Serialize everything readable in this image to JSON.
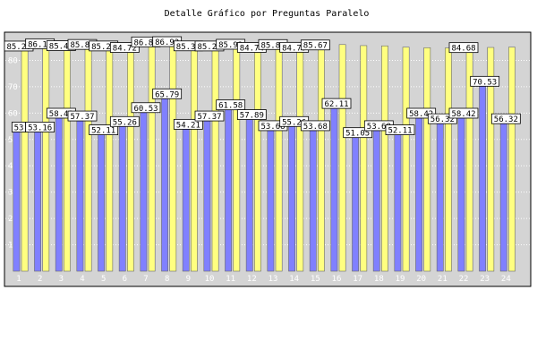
{
  "chart_data": {
    "type": "bar",
    "title": "Detalle Gráfico por Preguntas Paralelo",
    "xlabel": "",
    "ylabel": "",
    "ylim": [
      0,
      90
    ],
    "yticks": [
      10,
      20,
      30,
      40,
      50,
      60,
      70,
      80
    ],
    "grid": true,
    "categories": [
      "1",
      "2",
      "3",
      "4",
      "5",
      "6",
      "7",
      "8",
      "9",
      "10",
      "11",
      "12",
      "13",
      "14",
      "15",
      "16",
      "17",
      "18",
      "19",
      "20",
      "21",
      "22",
      "23",
      "24"
    ],
    "series": [
      {
        "color": "#8080ff",
        "values": [
          53.16,
          53.16,
          58.42,
          57.37,
          52.11,
          55.26,
          60.53,
          65.79,
          54.21,
          57.37,
          61.58,
          57.89,
          53.68,
          55.26,
          53.68,
          62.11,
          51.05,
          53.68,
          52.11,
          58.42,
          56.32,
          58.42,
          70.53,
          56.32
        ]
      },
      {
        "color": "#ffff80",
        "values": [
          85.26,
          86.14,
          85.4,
          85.87,
          85.29,
          84.72,
          86.84,
          86.93,
          85.33,
          85.28,
          85.93,
          84.74,
          85.83,
          84.79,
          85.67,
          86.0,
          85.6,
          85.5,
          85.0,
          84.8,
          84.7,
          84.68,
          84.9,
          85.0
        ]
      }
    ],
    "data_labels": {
      "series0": [
        "53",
        "53.16",
        "58.42",
        "57.37",
        "52.11",
        "55.26",
        "60.53",
        "65.79",
        "54.21",
        "57.37",
        "61.58",
        "57.89",
        "53.68",
        "55.26",
        "53.68",
        "62.11",
        "51.05",
        "53.68",
        "52.11",
        "58.42",
        "56.32",
        "58.42",
        "70.53",
        "56.32"
      ],
      "series1": [
        "85.26",
        "86.14",
        "85.40",
        "85.87",
        "85.29",
        "84.72",
        "86.84",
        "86.93",
        "85.33",
        "85.28",
        "85.93",
        "84.74",
        "85.83",
        "84.79",
        "85.67",
        "",
        "",
        "",
        "",
        "",
        "",
        "84.68",
        "",
        ""
      ]
    },
    "colors": {
      "plot_background": "#d4d4d4",
      "frame": "#000000",
      "grid": "#ffffff",
      "label_box": "#ffffff"
    }
  }
}
